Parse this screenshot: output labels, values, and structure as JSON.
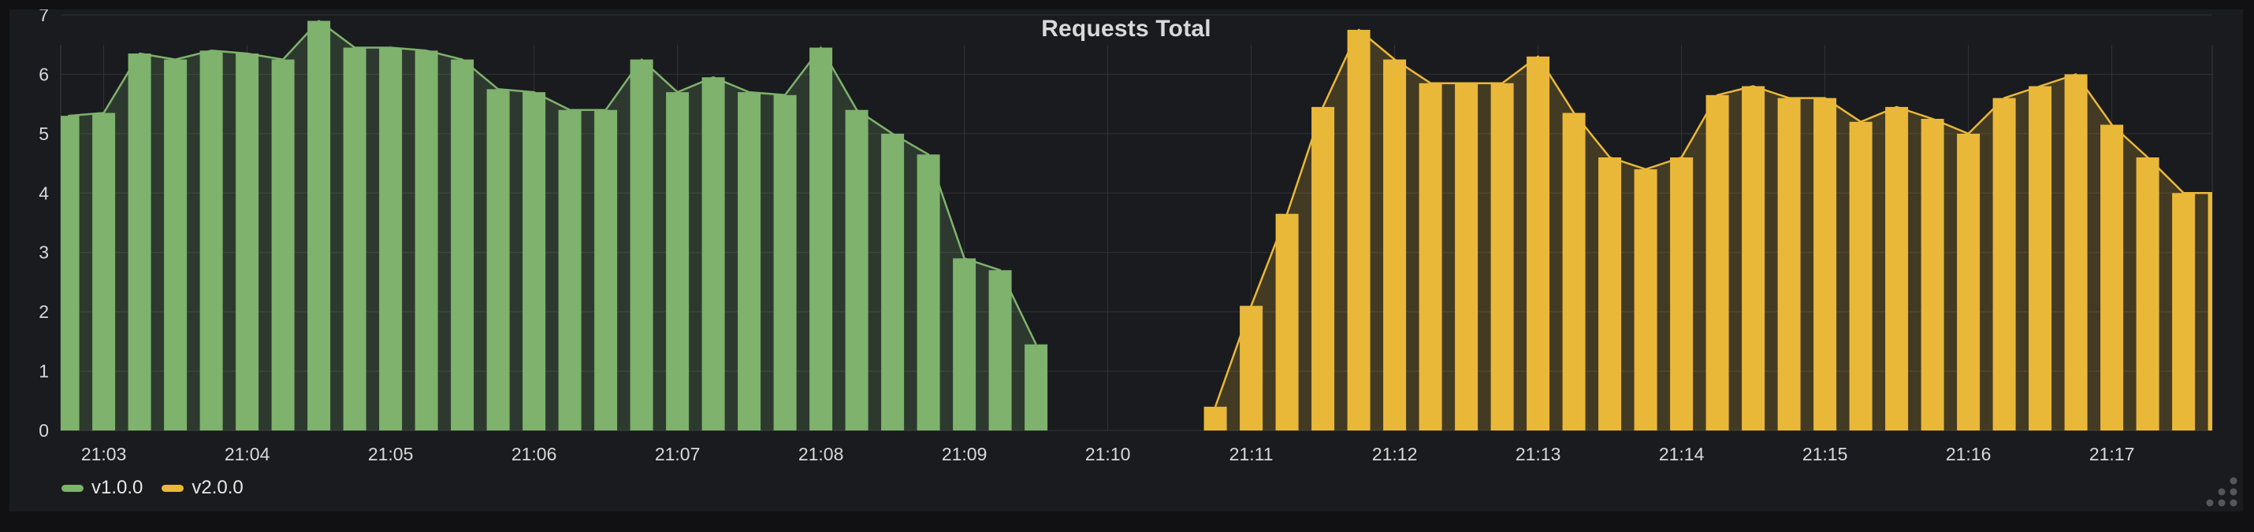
{
  "panel": {
    "title": "Requests Total"
  },
  "colors": {
    "panel_bg": "#1a1b1e",
    "page_bg": "#111113",
    "grid": "#323338",
    "plot_border": "#3a3b40",
    "tick_text": "#d8d9da",
    "series_green": "#7eb26d",
    "series_yellow": "#eab839"
  },
  "chart_data": {
    "type": "bar",
    "title": "Requests Total",
    "xlabel": "",
    "ylabel": "",
    "grid": true,
    "legend_position": "bottom-left",
    "bar_interval_seconds": 15,
    "x_axis": {
      "start": "21:02:42",
      "end": "21:17:42",
      "ticks": [
        "21:03",
        "21:04",
        "21:05",
        "21:06",
        "21:07",
        "21:08",
        "21:09",
        "21:10",
        "21:11",
        "21:12",
        "21:13",
        "21:14",
        "21:15",
        "21:16",
        "21:17"
      ]
    },
    "y_axis": {
      "min": 0,
      "max": 7,
      "ticks": [
        0,
        1,
        2,
        3,
        4,
        5,
        6,
        7
      ]
    },
    "series": [
      {
        "name": "v1.0.0",
        "color": "#7eb26d",
        "points": [
          [
            "21:02:45",
            5.3
          ],
          [
            "21:03:00",
            5.35
          ],
          [
            "21:03:15",
            6.35
          ],
          [
            "21:03:30",
            6.25
          ],
          [
            "21:03:45",
            6.4
          ],
          [
            "21:04:00",
            6.35
          ],
          [
            "21:04:15",
            6.25
          ],
          [
            "21:04:30",
            6.9
          ],
          [
            "21:04:45",
            6.45
          ],
          [
            "21:05:00",
            6.45
          ],
          [
            "21:05:15",
            6.4
          ],
          [
            "21:05:30",
            6.25
          ],
          [
            "21:05:45",
            5.75
          ],
          [
            "21:06:00",
            5.7
          ],
          [
            "21:06:15",
            5.4
          ],
          [
            "21:06:30",
            5.4
          ],
          [
            "21:06:45",
            6.25
          ],
          [
            "21:07:00",
            5.7
          ],
          [
            "21:07:15",
            5.95
          ],
          [
            "21:07:30",
            5.7
          ],
          [
            "21:07:45",
            5.65
          ],
          [
            "21:08:00",
            6.45
          ],
          [
            "21:08:15",
            5.4
          ],
          [
            "21:08:30",
            5.0
          ],
          [
            "21:08:45",
            4.65
          ],
          [
            "21:09:00",
            2.9
          ],
          [
            "21:09:15",
            2.7
          ],
          [
            "21:09:30",
            1.45
          ]
        ]
      },
      {
        "name": "v2.0.0",
        "color": "#eab839",
        "points": [
          [
            "21:10:45",
            0.4
          ],
          [
            "21:11:00",
            2.1
          ],
          [
            "21:11:15",
            3.65
          ],
          [
            "21:11:30",
            5.45
          ],
          [
            "21:11:45",
            6.75
          ],
          [
            "21:12:00",
            6.25
          ],
          [
            "21:12:15",
            5.85
          ],
          [
            "21:12:30",
            5.85
          ],
          [
            "21:12:45",
            5.85
          ],
          [
            "21:13:00",
            6.3
          ],
          [
            "21:13:15",
            5.35
          ],
          [
            "21:13:30",
            4.6
          ],
          [
            "21:13:45",
            4.4
          ],
          [
            "21:14:00",
            4.6
          ],
          [
            "21:14:15",
            5.65
          ],
          [
            "21:14:30",
            5.8
          ],
          [
            "21:14:45",
            5.6
          ],
          [
            "21:15:00",
            5.6
          ],
          [
            "21:15:15",
            5.2
          ],
          [
            "21:15:30",
            5.45
          ],
          [
            "21:15:45",
            5.25
          ],
          [
            "21:16:00",
            5.0
          ],
          [
            "21:16:15",
            5.6
          ],
          [
            "21:16:30",
            5.8
          ],
          [
            "21:16:45",
            6.0
          ],
          [
            "21:17:00",
            5.15
          ],
          [
            "21:17:15",
            4.6
          ],
          [
            "21:17:30",
            4.0
          ],
          [
            "21:17:45",
            4.0
          ]
        ]
      }
    ]
  }
}
